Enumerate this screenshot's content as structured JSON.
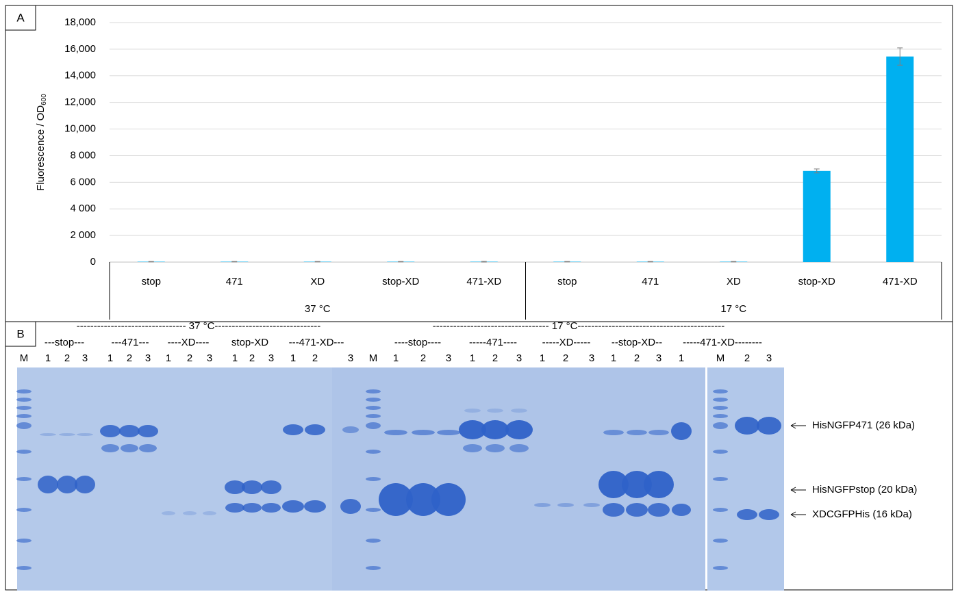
{
  "chart_data": {
    "type": "bar",
    "panel_label": "A",
    "y_label": "Fluorescence / OD",
    "y_label_sub": "600",
    "groups": [
      {
        "name": "37 °C",
        "categories": [
          "stop",
          "471",
          "XD",
          "stop-XD",
          "471-XD"
        ]
      },
      {
        "name": "17 °C",
        "categories": [
          "stop",
          "471",
          "XD",
          "stop-XD",
          "471-XD"
        ]
      }
    ],
    "series": [
      {
        "color": "#00b0f0",
        "values": [
          30,
          30,
          30,
          30,
          30,
          30,
          30,
          30,
          6850,
          15450
        ],
        "error": [
          20,
          20,
          20,
          20,
          30,
          20,
          20,
          20,
          150,
          650
        ]
      }
    ],
    "error_color": "#7f7f7f",
    "ylim": [
      0,
      18000
    ],
    "yticks": [
      0,
      {
        "value": 2000,
        "label": "2 000"
      },
      {
        "value": 4000,
        "label": "4 000"
      },
      {
        "value": 6000,
        "label": "6 000"
      },
      {
        "value": 8000,
        "label": "8 000"
      },
      {
        "value": 10000,
        "label": "10,000"
      },
      {
        "value": 12000,
        "label": "12,000"
      },
      {
        "value": 14000,
        "label": "14,000"
      },
      {
        "value": 16000,
        "label": "16,000"
      },
      {
        "value": 18000,
        "label": "18,000"
      }
    ],
    "grid": true
  },
  "gel": {
    "panel_label": "B",
    "headers": [
      "-------------------------------- 37 °C-------------------------------",
      "---------------------------------- 17 °C-------------------------------------------"
    ],
    "groups": [
      "---stop---",
      "---471---",
      "----XD----",
      "stop-XD",
      "---471-XD---",
      "----stop----",
      "-----471----",
      "-----XD-----",
      "--stop-XD--",
      "-----471-XD--------"
    ],
    "lanes": [
      "M",
      "1",
      "2",
      "3",
      "1",
      "2",
      "3",
      "1",
      "2",
      "3",
      "1",
      "2",
      "3",
      "1",
      "2",
      "3",
      "M",
      "1",
      "2",
      "3",
      "1",
      "2",
      "3",
      "1",
      "2",
      "3",
      "1",
      "2",
      "3",
      "1",
      "M",
      "2",
      "3"
    ],
    "bands": [
      "HisNGFP471 (26 kDa)",
      "HisNGFPstop (20 kDa)",
      "XDCGFPHis (16 kDa)"
    ]
  }
}
